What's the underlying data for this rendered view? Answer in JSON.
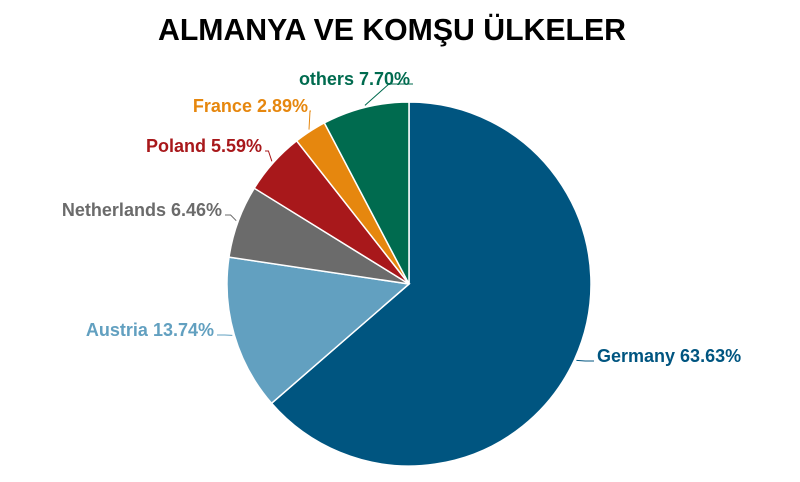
{
  "chart_data": {
    "type": "pie",
    "title": "ALMANYA VE KOMŞU ÜLKELER",
    "categories": [
      "Germany",
      "Austria",
      "Netherlands",
      "Poland",
      "France",
      "others"
    ],
    "values": [
      63.63,
      13.74,
      6.46,
      5.59,
      2.89,
      7.7
    ],
    "value_labels": [
      "63.63%",
      "13.74%",
      "6.46%",
      "5.59%",
      "2.89%",
      "7.70%"
    ],
    "colors": [
      "#005580",
      "#62a0c0",
      "#6b6b6b",
      "#a8181b",
      "#e6870e",
      "#006b4f"
    ]
  }
}
